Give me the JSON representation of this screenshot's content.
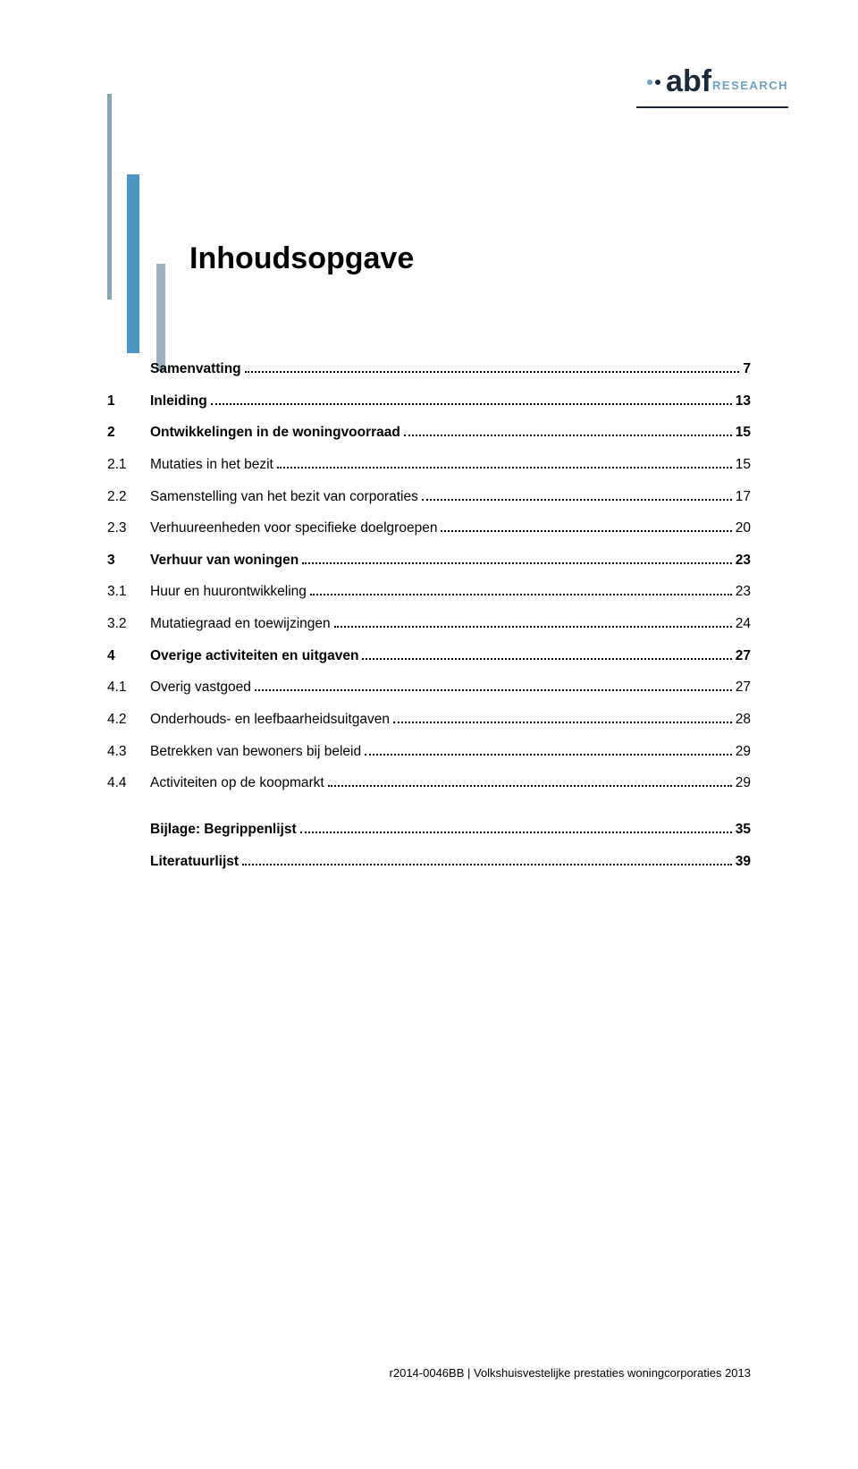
{
  "logo": {
    "brand_text": "abf",
    "sub_text": "RESEARCH",
    "brand_color": "#1a2a3a",
    "sub_color": "#6fa2bf",
    "dot_colors": [
      "#6fa2bf",
      "#1a2a3a"
    ],
    "baseline_color": "#1a2a3a"
  },
  "ornament": {
    "bar1_color": "#89a4b2",
    "bar2_color": "#4d95c4",
    "bar3_color": "#9ab4c1"
  },
  "title": "Inhoudsopgave",
  "toc": [
    {
      "kind": "top",
      "num": "",
      "label": "Samenvatting",
      "page": "7"
    },
    {
      "kind": "top",
      "num": "1",
      "label": "Inleiding",
      "page": "13"
    },
    {
      "kind": "top",
      "num": "2",
      "label": "Ontwikkelingen in de woningvoorraad",
      "page": "15"
    },
    {
      "kind": "sub",
      "num": "2.1",
      "label": "Mutaties in het bezit",
      "page": "15"
    },
    {
      "kind": "sub",
      "num": "2.2",
      "label": "Samenstelling van het bezit van corporaties",
      "page": "17"
    },
    {
      "kind": "sub",
      "num": "2.3",
      "label": "Verhuureenheden voor specifieke doelgroepen",
      "page": "20"
    },
    {
      "kind": "top",
      "num": "3",
      "label": "Verhuur van woningen",
      "page": "23"
    },
    {
      "kind": "sub",
      "num": "3.1",
      "label": "Huur en huurontwikkeling",
      "page": "23"
    },
    {
      "kind": "sub",
      "num": "3.2",
      "label": "Mutatiegraad en toewijzingen",
      "page": "24"
    },
    {
      "kind": "top",
      "num": "4",
      "label": "Overige activiteiten en uitgaven",
      "page": "27"
    },
    {
      "kind": "sub",
      "num": "4.1",
      "label": "Overig vastgoed",
      "page": "27"
    },
    {
      "kind": "sub",
      "num": "4.2",
      "label": "Onderhouds- en leefbaarheidsuitgaven",
      "page": "28"
    },
    {
      "kind": "sub",
      "num": "4.3",
      "label": "Betrekken van bewoners bij beleid",
      "page": "29"
    },
    {
      "kind": "sub",
      "num": "4.4",
      "label": "Activiteiten op de koopmarkt",
      "page": "29"
    },
    {
      "kind": "spacer"
    },
    {
      "kind": "top",
      "num": "",
      "label": "Bijlage: Begrippenlijst",
      "page": "35"
    },
    {
      "kind": "top",
      "num": "",
      "label": "Literatuurlijst",
      "page": "39"
    }
  ],
  "footer": {
    "doc_id": "r2014-0046BB",
    "separator": " | ",
    "doc_title": "Volkshuisvestelijke prestaties woningcorporaties 2013"
  },
  "colors": {
    "text": "#000000",
    "background": "#ffffff"
  },
  "typography": {
    "title_fontsize_pt": 26,
    "body_fontsize_pt": 12,
    "footer_fontsize_pt": 10,
    "font_family": "Arial"
  }
}
